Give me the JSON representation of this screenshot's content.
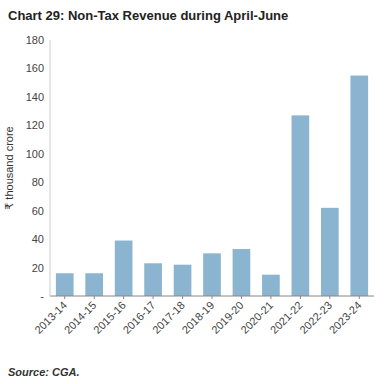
{
  "chart_data": {
    "type": "bar",
    "title": "Chart 29: Non-Tax Revenue during April-June",
    "categories": [
      "2013-14",
      "2014-15",
      "2015-16",
      "2016-17",
      "2017-18",
      "2018-19",
      "2019-20",
      "2020-21",
      "2021-22",
      "2022-23",
      "2023-24"
    ],
    "values": [
      16,
      16,
      39,
      23,
      22,
      30,
      33,
      15,
      127,
      62,
      155
    ],
    "color": "#8ab4d0",
    "ylabel": "₹ thousand crore",
    "ylim": [
      0,
      180
    ],
    "yticks": [
      {
        "value": 0,
        "label": "-"
      },
      20,
      40,
      60,
      80,
      100,
      120,
      140,
      160,
      180
    ],
    "grid": false,
    "annotations": [
      "Source: CGA."
    ]
  }
}
